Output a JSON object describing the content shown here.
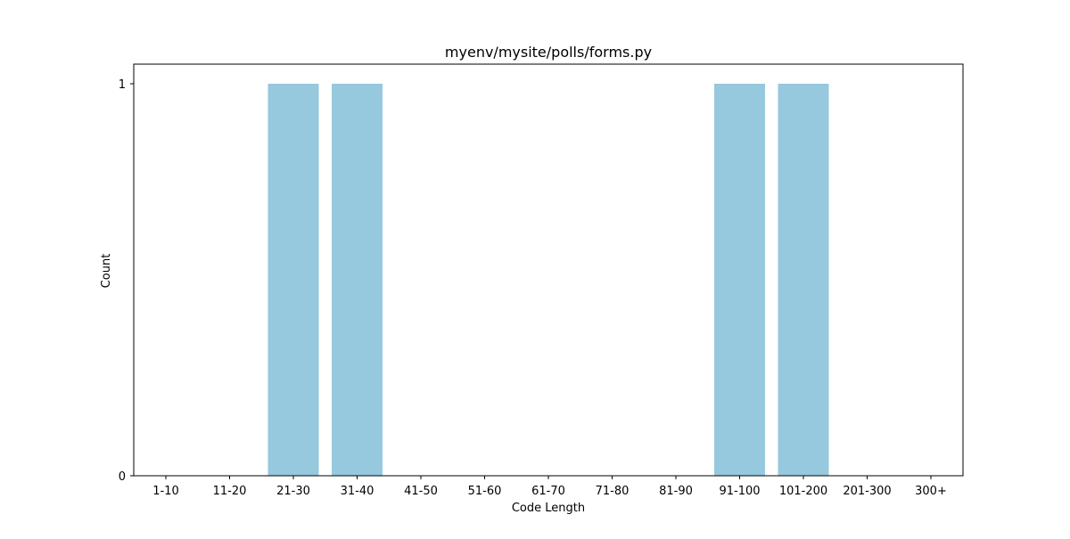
{
  "chart_data": {
    "type": "bar",
    "title": "myenv/mysite/polls/forms.py",
    "xlabel": "Code Length",
    "ylabel": "Count",
    "categories": [
      "1-10",
      "11-20",
      "21-30",
      "31-40",
      "41-50",
      "51-60",
      "61-70",
      "71-80",
      "81-90",
      "91-100",
      "101-200",
      "201-300",
      "300+"
    ],
    "values": [
      0,
      0,
      1,
      1,
      0,
      0,
      0,
      0,
      0,
      1,
      1,
      0,
      0
    ],
    "ylim": [
      0,
      1
    ],
    "yticks": [
      0,
      1
    ],
    "grid": false,
    "bar_color": "#96c8de"
  }
}
